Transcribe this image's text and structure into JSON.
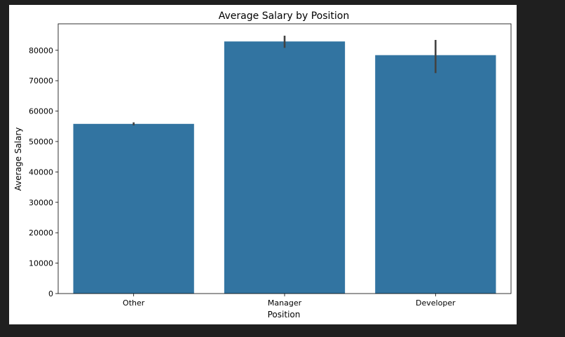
{
  "chart_data": {
    "type": "bar",
    "title": "Average Salary by Position",
    "xlabel": "Position",
    "ylabel": "Average Salary",
    "categories": [
      "Other",
      "Manager",
      "Developer"
    ],
    "values": [
      55800,
      82900,
      78400
    ],
    "error_bars": [
      [
        55300,
        56300
      ],
      [
        80800,
        84800
      ],
      [
        72500,
        83400
      ]
    ],
    "ylim": [
      0,
      88700
    ],
    "yticks": [
      0,
      10000,
      20000,
      30000,
      40000,
      50000,
      60000,
      70000,
      80000
    ],
    "ytick_labels": [
      "0",
      "10000",
      "20000",
      "30000",
      "40000",
      "50000",
      "60000",
      "70000",
      "80000"
    ],
    "grid": false,
    "legend": "none",
    "colors": {
      "bar": "#3274a1",
      "error_bar": "#424242",
      "axes": "#000000",
      "background": "#ffffff",
      "page": "#1f1f1f"
    }
  }
}
